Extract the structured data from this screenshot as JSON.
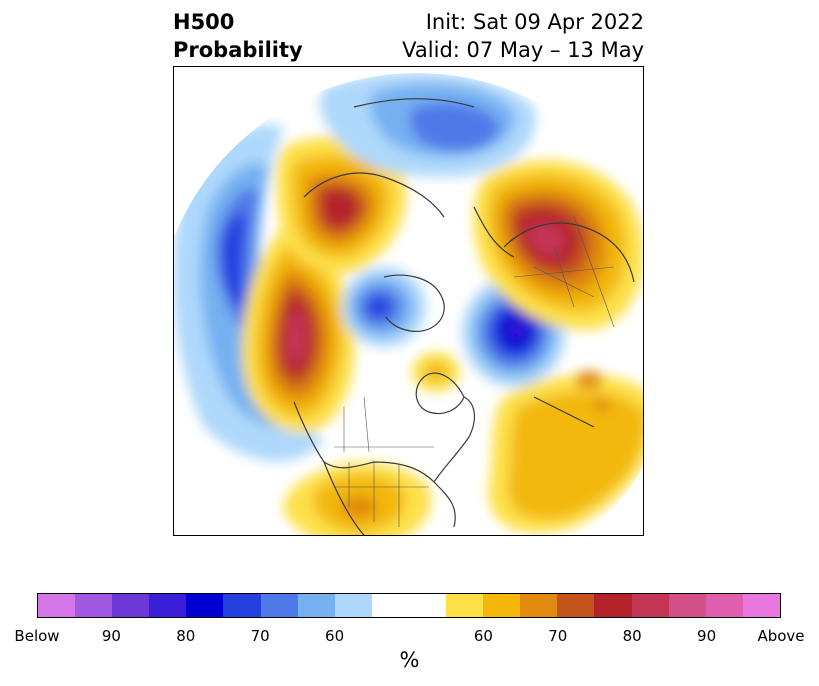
{
  "title": {
    "left_line1": "H500",
    "left_line2": "Probability",
    "right_line1": "Init: Sat 09 Apr 2022",
    "right_line2": "Valid: 07 May – 13 May"
  },
  "colorbar": {
    "unit": "%",
    "segments": [
      {
        "color": "#d475e8",
        "weight": 1
      },
      {
        "color": "#a158e0",
        "weight": 1
      },
      {
        "color": "#6e38d8",
        "weight": 1
      },
      {
        "color": "#3a1ed8",
        "weight": 1
      },
      {
        "color": "#0000d2",
        "weight": 1
      },
      {
        "color": "#2441df",
        "weight": 1
      },
      {
        "color": "#4f79e8",
        "weight": 1
      },
      {
        "color": "#76b0f1",
        "weight": 1
      },
      {
        "color": "#aed8fb",
        "weight": 1
      },
      {
        "color": "#ffffff",
        "weight": 2
      },
      {
        "color": "#fde048",
        "weight": 1
      },
      {
        "color": "#f3b80a",
        "weight": 1
      },
      {
        "color": "#e08a10",
        "weight": 1
      },
      {
        "color": "#c4541b",
        "weight": 1
      },
      {
        "color": "#b4232a",
        "weight": 1
      },
      {
        "color": "#c43655",
        "weight": 1
      },
      {
        "color": "#d34f8a",
        "weight": 1
      },
      {
        "color": "#de5fae",
        "weight": 1
      },
      {
        "color": "#e878df",
        "weight": 1
      }
    ],
    "tick_labels": [
      "Below",
      "90",
      "80",
      "70",
      "60",
      "60",
      "70",
      "80",
      "90",
      "Above"
    ]
  },
  "map": {
    "projection": "north-polar-stereographic",
    "regions": [
      {
        "name": "positive-anomaly-western-north-america",
        "max_probability": 90,
        "sign": "above"
      },
      {
        "name": "positive-anomaly-alaska-yukon",
        "max_probability": 80,
        "sign": "above"
      },
      {
        "name": "positive-anomaly-scandinavia-western-russia",
        "max_probability": 80,
        "sign": "above"
      },
      {
        "name": "negative-anomaly-north-pacific",
        "max_probability": 80,
        "sign": "below"
      },
      {
        "name": "negative-anomaly-greenland-iceland",
        "max_probability": 90,
        "sign": "below"
      },
      {
        "name": "negative-anomaly-eastern-siberia",
        "max_probability": 70,
        "sign": "below"
      },
      {
        "name": "positive-anomaly-north-atlantic",
        "max_probability": 70,
        "sign": "above"
      }
    ]
  }
}
